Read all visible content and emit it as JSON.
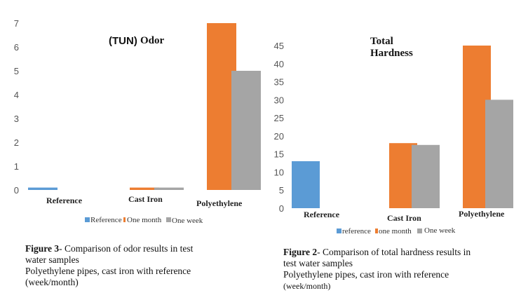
{
  "chart_data": [
    {
      "type": "bar",
      "title_prefix": "(TUN)",
      "title": "Odor",
      "categories": [
        "Reference",
        "Cast Iron",
        "Polyethylene"
      ],
      "series": [
        {
          "name": "Reference",
          "color": "#5B9BD5",
          "values": [
            0.1,
            0,
            0
          ]
        },
        {
          "name": "One month",
          "color": "#ED7D31",
          "values": [
            0,
            0.1,
            7
          ]
        },
        {
          "name": "One week",
          "color": "#A5A5A5",
          "values": [
            0,
            0.1,
            5
          ]
        }
      ],
      "ylim": [
        0,
        7
      ],
      "yticks": [
        0,
        1,
        2,
        3,
        4,
        5,
        6,
        7
      ],
      "legend_labels": [
        "Reference",
        "One month",
        "One week"
      ],
      "legend": "bottom",
      "grid": false
    },
    {
      "type": "bar",
      "title_lines": [
        "Total",
        "Hardness"
      ],
      "categories": [
        "Reference",
        "Cast Iron",
        "Polyethylene"
      ],
      "series": [
        {
          "name": "reference",
          "color": "#5B9BD5",
          "values": [
            13,
            0,
            0
          ]
        },
        {
          "name": "one month",
          "color": "#ED7D31",
          "values": [
            0,
            18,
            45
          ]
        },
        {
          "name": "One week",
          "color": "#A5A5A5",
          "values": [
            0,
            17.5,
            30
          ]
        }
      ],
      "ylim": [
        0,
        45
      ],
      "yticks": [
        0,
        5,
        10,
        15,
        20,
        25,
        30,
        35,
        40,
        45
      ],
      "legend_labels": [
        "reference",
        "one month",
        "One week"
      ],
      "legend": "bottom",
      "grid": false
    }
  ],
  "captions": {
    "fig3": {
      "label": "Figure 3",
      "line1": "- Comparison of odor results in test",
      "line2": "water samples",
      "line3": "Polyethylene pipes, cast iron with reference",
      "line4": "(week/month)"
    },
    "fig2": {
      "label": "Figure 2",
      "line1": "- Comparison of total hardness results in",
      "line2": "test water samples",
      "line3": "Polyethylene pipes, cast iron with reference",
      "line4": "(week/month)"
    }
  }
}
